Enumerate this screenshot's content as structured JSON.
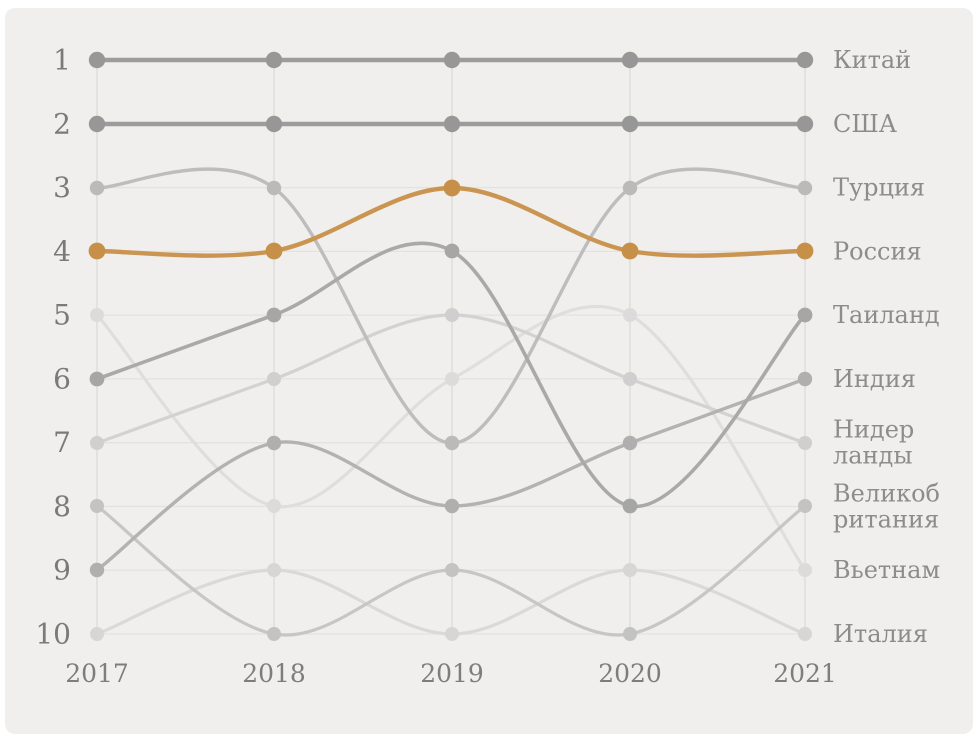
{
  "chart_data": {
    "type": "line",
    "subtype": "bump-chart",
    "title": "",
    "xlabel": "",
    "ylabel": "",
    "x": [
      2017,
      2018,
      2019,
      2020,
      2021
    ],
    "x_tick_labels": [
      "2017",
      "2018",
      "2019",
      "2020",
      "2021"
    ],
    "y_axis": "rank",
    "y_tick_labels": [
      "1",
      "2",
      "3",
      "4",
      "5",
      "6",
      "7",
      "8",
      "9",
      "10"
    ],
    "ylim": [
      1,
      10
    ],
    "grid": "on",
    "legend_position": "right-of-last-point",
    "highlight_color": "#ca9551",
    "series": [
      {
        "key": "italy",
        "name": "Италия",
        "label_lines": [
          "Италия"
        ],
        "ranks": [
          10,
          9,
          10,
          9,
          10
        ],
        "color": "#d9d9d9",
        "dot_color": "#d6d6d6",
        "width": 3.2,
        "dot": 7,
        "highlighted": false
      },
      {
        "key": "vietnam",
        "name": "Вьетнам",
        "label_lines": [
          "Вьетнам"
        ],
        "ranks": [
          5,
          8,
          6,
          5,
          9
        ],
        "color": "#dedede",
        "dot_color": "#dbdbdb",
        "width": 3.2,
        "dot": 7,
        "highlighted": false
      },
      {
        "key": "netherlands",
        "name": "Нидерланды",
        "label_lines": [
          "Нидер",
          "ланды"
        ],
        "ranks": [
          7,
          6,
          5,
          6,
          7
        ],
        "color": "#d2d2d2",
        "dot_color": "#cfcfcf",
        "width": 3.2,
        "dot": 7,
        "highlighted": false
      },
      {
        "key": "uk",
        "name": "Великобритания",
        "label_lines": [
          "Великоб",
          "ритания"
        ],
        "ranks": [
          8,
          10,
          9,
          10,
          8
        ],
        "color": "#c6c6c6",
        "dot_color": "#c3c3c3",
        "width": 3.2,
        "dot": 7,
        "highlighted": false
      },
      {
        "key": "turkey",
        "name": "Турция",
        "label_lines": [
          "Турция"
        ],
        "ranks": [
          3,
          3,
          7,
          3,
          3
        ],
        "color": "#bdbdbd",
        "dot_color": "#bababa",
        "width": 3.4,
        "dot": 7.2,
        "highlighted": false
      },
      {
        "key": "india",
        "name": "Индия",
        "label_lines": [
          "Индия"
        ],
        "ranks": [
          9,
          7,
          8,
          7,
          6
        ],
        "color": "#b2b2b2",
        "dot_color": "#afafaf",
        "width": 3.4,
        "dot": 7.2,
        "highlighted": false
      },
      {
        "key": "thailand",
        "name": "Таиланд",
        "label_lines": [
          "Таиланд"
        ],
        "ranks": [
          6,
          5,
          4,
          8,
          5
        ],
        "color": "#a9a9a9",
        "dot_color": "#a6a6a6",
        "width": 3.6,
        "dot": 7.4,
        "highlighted": false
      },
      {
        "key": "china",
        "name": "Китай",
        "label_lines": [
          "Китай"
        ],
        "ranks": [
          1,
          1,
          1,
          1,
          1
        ],
        "color": "#9c9c9c",
        "dot_color": "#979797",
        "width": 4.4,
        "dot": 8.2,
        "highlighted": false
      },
      {
        "key": "usa",
        "name": "США",
        "label_lines": [
          "США"
        ],
        "ranks": [
          2,
          2,
          2,
          2,
          2
        ],
        "color": "#9c9c9c",
        "dot_color": "#979797",
        "width": 4.4,
        "dot": 8.2,
        "highlighted": false
      },
      {
        "key": "russia",
        "name": "Россия",
        "label_lines": [
          "Россия"
        ],
        "ranks": [
          4,
          4,
          3,
          4,
          4
        ],
        "color": "#ca9551",
        "dot_color": "#c69049",
        "width": 4.4,
        "dot": 8.4,
        "highlighted": true
      }
    ]
  }
}
